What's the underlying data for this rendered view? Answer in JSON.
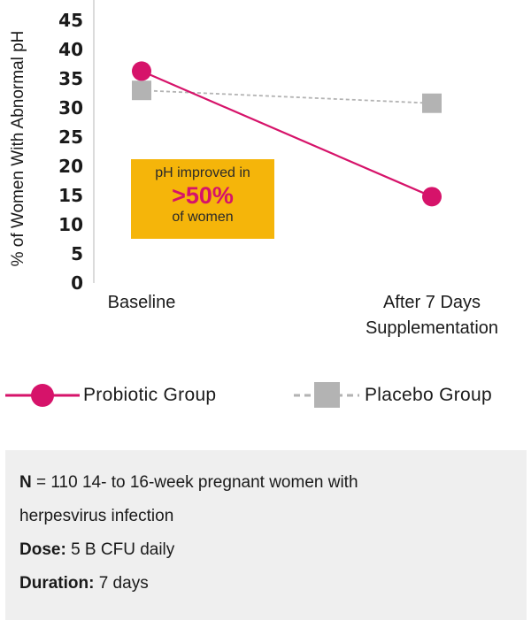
{
  "chart_data": {
    "type": "line",
    "categories": [
      "Baseline",
      "After 7 Days\nSupplementation"
    ],
    "ylabel": "% of Women With Abnormal pH",
    "ylim": [
      0,
      45
    ],
    "yticks": [
      0,
      5,
      10,
      15,
      20,
      25,
      30,
      35,
      40,
      45
    ],
    "grid": false,
    "legend_position": "bottom",
    "series": [
      {
        "name": "Probiotic Group",
        "values": [
          36.3,
          14.8
        ],
        "color": "#d6136a",
        "marker": "circle",
        "line": "solid"
      },
      {
        "name": "Placebo Group",
        "values": [
          33.0,
          30.8
        ],
        "color": "#b3b3b3",
        "marker": "square",
        "line": "dashed"
      }
    ],
    "annotation": {
      "line1": "pH improved in",
      "line2": ">50%",
      "line3": "of women",
      "background": "#f5b50a",
      "highlight_color": "#d6136a"
    }
  },
  "info": {
    "n_label": "N",
    "n_text": " = 110 14- to 16-week pregnant women with",
    "n_text2": "herpesvirus infection",
    "dose_label": "Dose:",
    "dose_text": " 5 B CFU daily",
    "duration_label": "Duration:",
    "duration_text": " 7 days"
  }
}
